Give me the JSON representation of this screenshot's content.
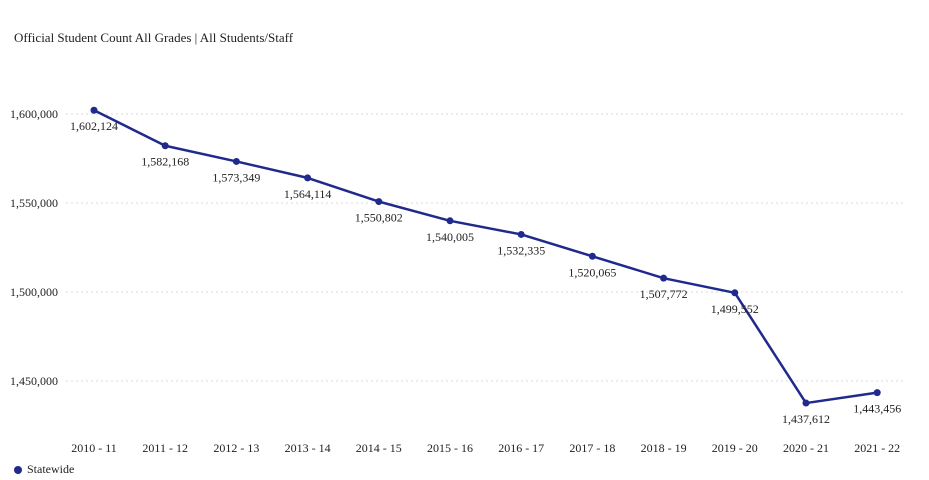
{
  "title": "Official Student Count All Grades | All Students/Staff",
  "colors": {
    "series": "#1f2a8c",
    "grid": "#d9d9d9",
    "text": "#222222"
  },
  "chart_data": {
    "type": "line",
    "title": "Official Student Count All Grades | All Students/Staff",
    "xlabel": "",
    "ylabel": "",
    "categories": [
      "2010 - 11",
      "2011 - 12",
      "2012 - 13",
      "2013 - 14",
      "2014 - 15",
      "2015 - 16",
      "2016 - 17",
      "2017 - 18",
      "2018 - 19",
      "2019 - 20",
      "2020 - 21",
      "2021 - 22"
    ],
    "series": [
      {
        "name": "Statewide",
        "values": [
          1602124,
          1582168,
          1573349,
          1564114,
          1550802,
          1540005,
          1532335,
          1520065,
          1507772,
          1499552,
          1437612,
          1443456
        ],
        "labels": [
          "1,602,124",
          "1,582,168",
          "1,573,349",
          "1,564,114",
          "1,550,802",
          "1,540,005",
          "1,532,335",
          "1,520,065",
          "1,507,772",
          "1,499,552",
          "1,437,612",
          "1,443,456"
        ]
      }
    ],
    "yticks": [
      1450000,
      1500000,
      1550000,
      1600000
    ],
    "ytick_labels": [
      "1,450,000",
      "1,500,000",
      "1,550,000",
      "1,600,000"
    ],
    "ylim": [
      1425000,
      1625000
    ],
    "grid": true,
    "legend": "bottom-left"
  }
}
